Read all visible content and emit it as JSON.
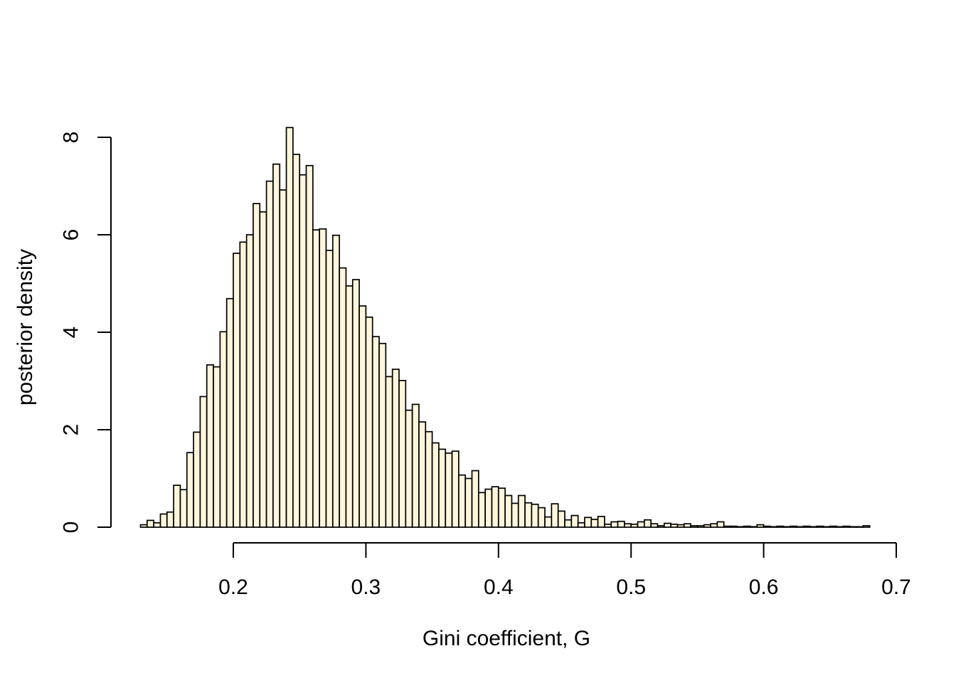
{
  "chart_data": {
    "type": "bar",
    "subtype": "histogram",
    "title": "",
    "xlabel": "Gini coefficient, G",
    "ylabel": "posterior density",
    "x_ticks": [
      0.2,
      0.3,
      0.4,
      0.5,
      0.6,
      0.7
    ],
    "y_ticks": [
      0,
      2,
      4,
      6,
      8
    ],
    "x_axis_range": [
      0.2,
      0.7
    ],
    "y_axis_range": [
      0,
      8
    ],
    "grid": "off",
    "legend": "none",
    "bin_start": 0.13,
    "bin_width": 0.005,
    "densities": [
      0.05,
      0.14,
      0.09,
      0.27,
      0.31,
      0.86,
      0.77,
      1.53,
      1.95,
      2.68,
      3.33,
      3.29,
      4.01,
      4.69,
      5.62,
      5.85,
      6.0,
      6.64,
      6.47,
      7.1,
      7.45,
      6.92,
      8.2,
      7.65,
      7.23,
      7.42,
      6.1,
      6.12,
      5.68,
      5.99,
      5.32,
      4.95,
      5.08,
      4.54,
      4.31,
      3.91,
      3.77,
      3.09,
      3.24,
      3.01,
      2.4,
      2.52,
      2.16,
      1.96,
      1.73,
      1.6,
      1.52,
      1.56,
      1.07,
      1.0,
      1.16,
      0.71,
      0.78,
      0.83,
      0.8,
      0.65,
      0.49,
      0.65,
      0.5,
      0.47,
      0.4,
      0.21,
      0.48,
      0.33,
      0.15,
      0.24,
      0.09,
      0.2,
      0.16,
      0.22,
      0.06,
      0.11,
      0.12,
      0.07,
      0.06,
      0.11,
      0.15,
      0.07,
      0.03,
      0.08,
      0.06,
      0.05,
      0.07,
      0.03,
      0.03,
      0.05,
      0.07,
      0.11,
      0.02,
      0.02,
      0.01,
      0.02,
      0.01,
      0.05,
      0.02,
      0.01,
      0.02,
      0.01,
      0.02,
      0.01,
      0.02,
      0.01,
      0.02,
      0.01,
      0.02,
      0.01,
      0.02,
      0.01,
      0.01,
      0.03
    ],
    "colors": {
      "bar_fill": "#FDF5DC",
      "bar_border": "#000000",
      "axis": "#000000",
      "background": "#FFFFFF"
    }
  }
}
